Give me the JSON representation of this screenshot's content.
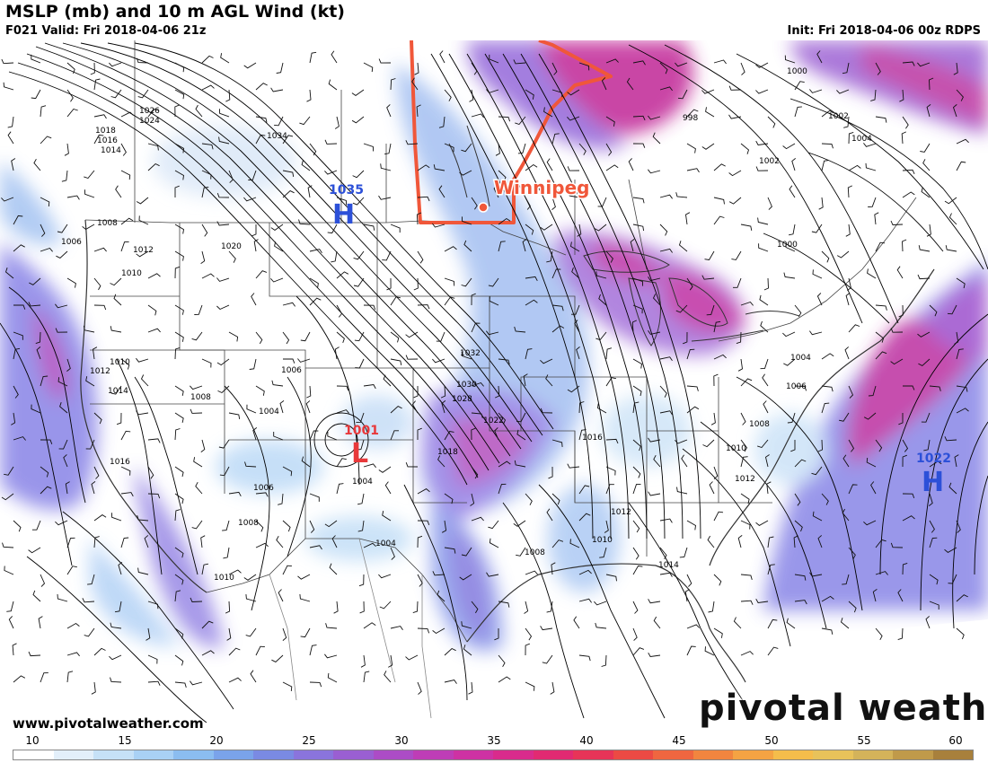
{
  "header": {
    "title": "MSLP (mb) and 10 m AGL Wind (kt)",
    "valid": "F021 Valid: Fri 2018-04-06 21z",
    "init": "Init: Fri 2018-04-06 00z RDPS"
  },
  "footer": {
    "website": "www.pivotalweather.com",
    "brand": "pivotal weather"
  },
  "annotation": {
    "city": "Winnipeg",
    "color": "#f0573a"
  },
  "pressure_centers": [
    {
      "type": "H",
      "value": "1035",
      "color": "#2c50d8"
    },
    {
      "type": "L",
      "value": "1001",
      "color": "#e8383a"
    },
    {
      "type": "H",
      "value": "1022",
      "color": "#2c50d8"
    }
  ],
  "isobar_labels": [
    "1026",
    "1024",
    "1018",
    "1016",
    "1014",
    "1034",
    "998",
    "1000",
    "1002",
    "1004",
    "1008",
    "1006",
    "1012",
    "1020",
    "1010",
    "1032",
    "1030",
    "1028",
    "1022",
    "1014",
    "1016",
    "1012",
    "1010",
    "1008",
    "1006",
    "1004",
    "1000",
    "1002",
    "1004",
    "1006",
    "1008",
    "1010",
    "1012",
    "1014",
    "1016",
    "1010",
    "1004",
    "1008",
    "1018",
    "1010",
    "1006",
    "1004",
    "1008",
    "1012"
  ],
  "colorbar": {
    "ticks": [
      "10",
      "15",
      "20",
      "25",
      "30",
      "35",
      "40",
      "45",
      "50",
      "55",
      "60"
    ],
    "colors": [
      "#ffffff",
      "#e3effa",
      "#c6e1f7",
      "#a9d1f5",
      "#8bbdf0",
      "#7aa3ea",
      "#7a8ae3",
      "#8a74dc",
      "#9a5fd2",
      "#ac4cc6",
      "#be3db6",
      "#ce32a3",
      "#d92b8c",
      "#e12a72",
      "#e73458",
      "#ec4a44",
      "#ef6640",
      "#f2853f",
      "#f5a343",
      "#f5bd4b",
      "#e8c25a",
      "#d4b35a",
      "#c09a4a",
      "#a8803c"
    ]
  }
}
